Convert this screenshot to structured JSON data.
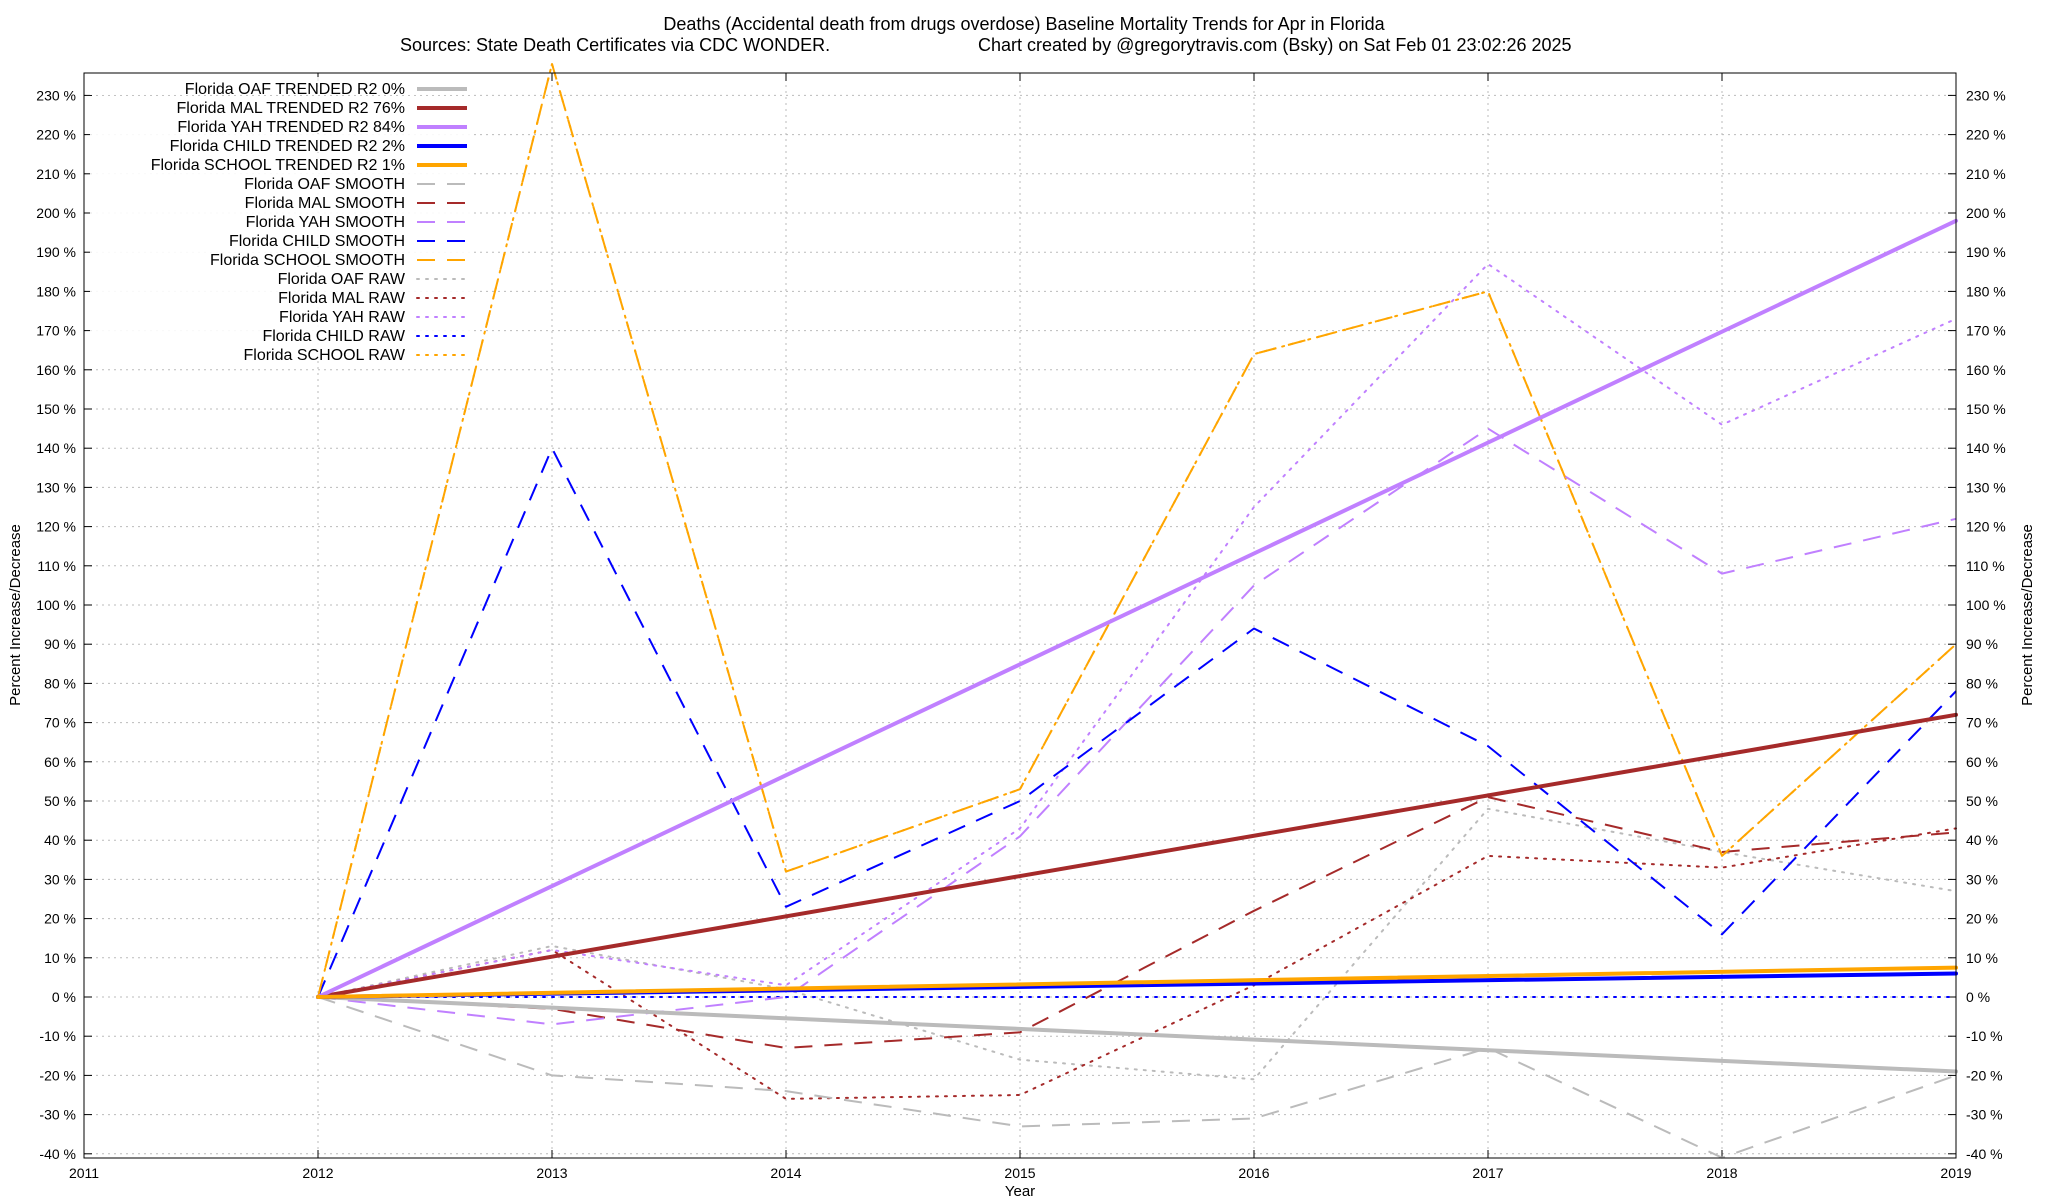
{
  "chart_data": {
    "type": "line",
    "title": "Deaths (Accidental death from drugs overdose)  Baseline Mortality Trends for Apr in Florida",
    "subtitle_left": "Sources: State Death Certificates via CDC WONDER.",
    "subtitle_right": "Chart created by @gregorytravis.com (Bsky) on Sat Feb 01 23:02:26 2025",
    "xlabel": "Year",
    "ylabel": "Percent Increase/Decrease",
    "ylabel_right": "Percent Increase/Decrease",
    "xlim": [
      2011,
      2019
    ],
    "ylim": [
      -40,
      235
    ],
    "x_ticks": [
      "2011",
      "2012",
      "2013",
      "2014",
      "2015",
      "2016",
      "2017",
      "2018",
      "2019"
    ],
    "y_ticks": [
      "-40 %",
      "-30 %",
      "-20 %",
      "-10 %",
      "0 %",
      "10 %",
      "20 %",
      "30 %",
      "40 %",
      "50 %",
      "60 %",
      "70 %",
      "80 %",
      "90 %",
      "100 %",
      "110 %",
      "120 %",
      "130 %",
      "140 %",
      "150 %",
      "160 %",
      "170 %",
      "180 %",
      "190 %",
      "200 %",
      "210 %",
      "220 %",
      "230 %"
    ],
    "grid": true,
    "legend_position": "top-left",
    "series": [
      {
        "name": "Florida OAF TRENDED R2  0%",
        "color": "#bbbbbb",
        "style": "solid",
        "width": 4,
        "x": [
          2012,
          2019
        ],
        "y": [
          0,
          -19
        ]
      },
      {
        "name": "Florida MAL TRENDED R2  76%",
        "color": "#a52a2a",
        "style": "solid",
        "width": 4,
        "x": [
          2012,
          2019
        ],
        "y": [
          0,
          72
        ]
      },
      {
        "name": "Florida YAH TRENDED R2  84%",
        "color": "#c080ff",
        "style": "solid",
        "width": 4,
        "x": [
          2012,
          2019
        ],
        "y": [
          0,
          198
        ]
      },
      {
        "name": "Florida CHILD TRENDED R2  2%",
        "color": "#0000ff",
        "style": "solid",
        "width": 4,
        "x": [
          2012,
          2019
        ],
        "y": [
          0,
          6
        ]
      },
      {
        "name": "Florida SCHOOL TRENDED R2  1%",
        "color": "#ffa500",
        "style": "solid",
        "width": 4,
        "x": [
          2012,
          2019
        ],
        "y": [
          0,
          7.5
        ]
      },
      {
        "name": "Florida OAF SMOOTH",
        "color": "#bbbbbb",
        "style": "dashed",
        "width": 2,
        "x": [
          2012,
          2013,
          2014,
          2015,
          2016,
          2017,
          2018,
          2019
        ],
        "y": [
          0,
          -20,
          -24,
          -33,
          -31,
          -13,
          -41,
          -20
        ]
      },
      {
        "name": "Florida MAL SMOOTH",
        "color": "#a52a2a",
        "style": "dashed",
        "width": 2,
        "x": [
          2012,
          2013,
          2014,
          2015,
          2016,
          2017,
          2018,
          2019
        ],
        "y": [
          0,
          -3,
          -13,
          -9,
          22,
          51,
          37,
          42
        ]
      },
      {
        "name": "Florida YAH SMOOTH",
        "color": "#c080ff",
        "style": "dashed",
        "width": 2,
        "x": [
          2012,
          2013,
          2014,
          2015,
          2016,
          2017,
          2018,
          2019
        ],
        "y": [
          0,
          -7,
          0,
          41,
          105,
          145,
          108,
          122
        ]
      },
      {
        "name": "Florida CHILD SMOOTH",
        "color": "#0000ff",
        "style": "dashed",
        "width": 2,
        "x": [
          2012,
          2013,
          2014,
          2015,
          2016,
          2017,
          2018,
          2019
        ],
        "y": [
          0,
          140,
          23,
          50,
          94,
          64,
          16,
          78
        ]
      },
      {
        "name": "Florida SCHOOL SMOOTH",
        "color": "#ffa500",
        "style": "dashed",
        "width": 2,
        "x": [
          2012,
          2013,
          2014,
          2015,
          2016,
          2017,
          2018,
          2019
        ],
        "y": [
          0,
          238,
          32,
          53,
          164,
          180,
          36,
          90
        ]
      },
      {
        "name": "Florida OAF RAW",
        "color": "#bbbbbb",
        "style": "dotted",
        "width": 2,
        "x": [
          2012,
          2013,
          2014,
          2015,
          2016,
          2017,
          2018,
          2019
        ],
        "y": [
          0,
          13,
          2,
          -16,
          -21,
          48,
          37,
          27
        ]
      },
      {
        "name": "Florida MAL RAW",
        "color": "#a52a2a",
        "style": "dotted",
        "width": 2,
        "x": [
          2012,
          2013,
          2014,
          2015,
          2016,
          2017,
          2018,
          2019
        ],
        "y": [
          0,
          12,
          -26,
          -25,
          3,
          36,
          33,
          43
        ]
      },
      {
        "name": "Florida YAH RAW",
        "color": "#c080ff",
        "style": "dotted",
        "width": 2,
        "x": [
          2012,
          2013,
          2014,
          2015,
          2016,
          2017,
          2018,
          2019
        ],
        "y": [
          0,
          12,
          3,
          43,
          125,
          187,
          146,
          173
        ]
      },
      {
        "name": "Florida CHILD RAW",
        "color": "#0000ff",
        "style": "dotted",
        "width": 2,
        "x": [
          2012,
          2013,
          2014,
          2015,
          2016,
          2017,
          2018,
          2019
        ],
        "y": [
          0,
          0,
          0,
          0,
          0,
          0,
          0,
          0
        ]
      },
      {
        "name": "Florida SCHOOL RAW",
        "color": "#ffa500",
        "style": "dotted",
        "width": 2,
        "x": [
          2012,
          2013,
          2014,
          2015,
          2016,
          2017,
          2018,
          2019
        ],
        "y": [
          0,
          238,
          32,
          53,
          164,
          180,
          36,
          90
        ]
      }
    ]
  }
}
